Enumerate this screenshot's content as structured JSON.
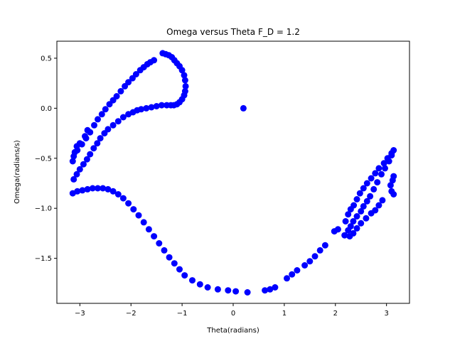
{
  "chart_data": {
    "type": "scatter",
    "title": "Omega versus Theta F_D = 1.2",
    "xlabel": "Theta(radians)",
    "ylabel": "Omega(radians/s)",
    "xlim": [
      -3.45,
      3.45
    ],
    "ylim": [
      -1.95,
      0.67
    ],
    "xticks": [
      -3,
      -2,
      -1,
      0,
      1,
      2,
      3
    ],
    "xtick_labels": [
      "−3",
      "−2",
      "−1",
      "0",
      "1",
      "2",
      "3"
    ],
    "yticks": [
      -1.5,
      -1.0,
      -0.5,
      0.0,
      0.5
    ],
    "ytick_labels": [
      "−1.5",
      "−1.0",
      "−0.5",
      "0.0",
      "0.5"
    ],
    "grid": false,
    "marker_color": "#0000ff",
    "series": [
      {
        "points": [
          [
            0.2,
            0.0
          ],
          [
            -1.38,
            0.55
          ],
          [
            -1.32,
            0.54
          ],
          [
            -1.26,
            0.53
          ],
          [
            -1.2,
            0.51
          ],
          [
            -1.15,
            0.48
          ],
          [
            -1.1,
            0.45
          ],
          [
            -1.05,
            0.42
          ],
          [
            -1.0,
            0.38
          ],
          [
            -0.96,
            0.33
          ],
          [
            -0.94,
            0.28
          ],
          [
            -0.93,
            0.22
          ],
          [
            -0.94,
            0.17
          ],
          [
            -0.96,
            0.13
          ],
          [
            -1.0,
            0.09
          ],
          [
            -1.05,
            0.06
          ],
          [
            -1.1,
            0.04
          ],
          [
            -1.16,
            0.03
          ],
          [
            -1.22,
            0.03
          ],
          [
            -1.3,
            0.03
          ],
          [
            -1.4,
            0.03
          ],
          [
            -1.5,
            0.02
          ],
          [
            -1.6,
            0.01
          ],
          [
            -1.7,
            0.0
          ],
          [
            -1.8,
            -0.01
          ],
          [
            -1.88,
            -0.02
          ],
          [
            -1.96,
            -0.04
          ],
          [
            -2.05,
            -0.06
          ],
          [
            -2.15,
            -0.09
          ],
          [
            -2.25,
            -0.13
          ],
          [
            -2.35,
            -0.17
          ],
          [
            -2.45,
            -0.21
          ],
          [
            -2.52,
            -0.25
          ],
          [
            -2.6,
            -0.3
          ],
          [
            -2.66,
            -0.35
          ],
          [
            -2.73,
            -0.4
          ],
          [
            -2.8,
            -0.46
          ],
          [
            -2.86,
            -0.51
          ],
          [
            -2.93,
            -0.56
          ],
          [
            -3.0,
            -0.61
          ],
          [
            -3.06,
            -0.66
          ],
          [
            -3.12,
            -0.71
          ],
          [
            -1.55,
            0.48
          ],
          [
            -1.62,
            0.46
          ],
          [
            -1.68,
            0.44
          ],
          [
            -1.75,
            0.41
          ],
          [
            -1.82,
            0.38
          ],
          [
            -1.9,
            0.34
          ],
          [
            -1.97,
            0.3
          ],
          [
            -2.05,
            0.26
          ],
          [
            -2.12,
            0.22
          ],
          [
            -2.2,
            0.17
          ],
          [
            -2.28,
            0.12
          ],
          [
            -2.35,
            0.08
          ],
          [
            -2.42,
            0.04
          ],
          [
            -2.5,
            -0.01
          ],
          [
            -2.57,
            -0.06
          ],
          [
            -2.65,
            -0.11
          ],
          [
            -2.72,
            -0.17
          ],
          [
            -2.8,
            -0.24
          ],
          [
            -2.88,
            -0.3
          ],
          [
            -2.96,
            -0.36
          ],
          [
            -3.05,
            -0.42
          ],
          [
            -3.12,
            -0.48
          ],
          [
            -3.14,
            -0.53
          ],
          [
            -3.1,
            -0.44
          ],
          [
            -3.06,
            -0.38
          ],
          [
            -3.0,
            -0.35
          ],
          [
            -2.9,
            -0.28
          ],
          [
            -2.85,
            -0.22
          ],
          [
            -3.14,
            -0.85
          ],
          [
            -3.05,
            -0.83
          ],
          [
            -2.95,
            -0.82
          ],
          [
            -2.85,
            -0.81
          ],
          [
            -2.75,
            -0.8
          ],
          [
            -2.65,
            -0.8
          ],
          [
            -2.55,
            -0.8
          ],
          [
            -2.45,
            -0.81
          ],
          [
            -2.35,
            -0.83
          ],
          [
            -2.25,
            -0.86
          ],
          [
            -2.15,
            -0.9
          ],
          [
            -2.05,
            -0.95
          ],
          [
            -1.95,
            -1.01
          ],
          [
            -1.85,
            -1.07
          ],
          [
            -1.75,
            -1.14
          ],
          [
            -1.65,
            -1.21
          ],
          [
            -1.55,
            -1.28
          ],
          [
            -1.45,
            -1.35
          ],
          [
            -1.35,
            -1.42
          ],
          [
            -1.25,
            -1.49
          ],
          [
            -1.15,
            -1.55
          ],
          [
            -1.05,
            -1.61
          ],
          [
            -0.95,
            -1.67
          ],
          [
            -0.8,
            -1.72
          ],
          [
            -0.65,
            -1.76
          ],
          [
            -0.5,
            -1.79
          ],
          [
            -0.3,
            -1.81
          ],
          [
            -0.1,
            -1.82
          ],
          [
            0.05,
            -1.83
          ],
          [
            0.28,
            -1.84
          ],
          [
            0.62,
            -1.82
          ],
          [
            0.72,
            -1.81
          ],
          [
            0.82,
            -1.79
          ],
          [
            1.05,
            -1.7
          ],
          [
            1.15,
            -1.66
          ],
          [
            1.25,
            -1.62
          ],
          [
            1.4,
            -1.57
          ],
          [
            1.5,
            -1.53
          ],
          [
            1.6,
            -1.48
          ],
          [
            1.7,
            -1.42
          ],
          [
            1.8,
            -1.37
          ],
          [
            1.98,
            -1.23
          ],
          [
            2.05,
            -1.21
          ],
          [
            2.18,
            -1.27
          ],
          [
            2.25,
            -1.22
          ],
          [
            2.3,
            -1.18
          ],
          [
            2.35,
            -1.13
          ],
          [
            2.42,
            -1.08
          ],
          [
            2.5,
            -1.03
          ],
          [
            2.55,
            -0.98
          ],
          [
            2.62,
            -0.93
          ],
          [
            2.68,
            -0.88
          ],
          [
            2.75,
            -0.81
          ],
          [
            2.82,
            -0.74
          ],
          [
            2.9,
            -0.66
          ],
          [
            2.97,
            -0.6
          ],
          [
            3.05,
            -0.53
          ],
          [
            3.1,
            -0.47
          ],
          [
            3.14,
            -0.42
          ],
          [
            2.2,
            -1.13
          ],
          [
            2.25,
            -1.06
          ],
          [
            2.3,
            -1.01
          ],
          [
            2.36,
            -0.97
          ],
          [
            2.42,
            -0.91
          ],
          [
            2.48,
            -0.85
          ],
          [
            2.55,
            -0.8
          ],
          [
            2.62,
            -0.75
          ],
          [
            2.7,
            -0.7
          ],
          [
            2.78,
            -0.65
          ],
          [
            2.85,
            -0.6
          ],
          [
            2.95,
            -0.55
          ],
          [
            3.02,
            -0.5
          ],
          [
            3.1,
            -0.45
          ],
          [
            3.08,
            -0.77
          ],
          [
            3.12,
            -0.72
          ],
          [
            3.14,
            -0.68
          ],
          [
            3.1,
            -0.83
          ],
          [
            3.14,
            -0.86
          ],
          [
            2.92,
            -0.92
          ],
          [
            2.85,
            -0.97
          ],
          [
            2.78,
            -1.02
          ],
          [
            2.7,
            -1.05
          ],
          [
            2.6,
            -1.1
          ],
          [
            2.5,
            -1.15
          ],
          [
            2.42,
            -1.2
          ],
          [
            2.35,
            -1.25
          ],
          [
            2.28,
            -1.28
          ]
        ]
      }
    ]
  }
}
